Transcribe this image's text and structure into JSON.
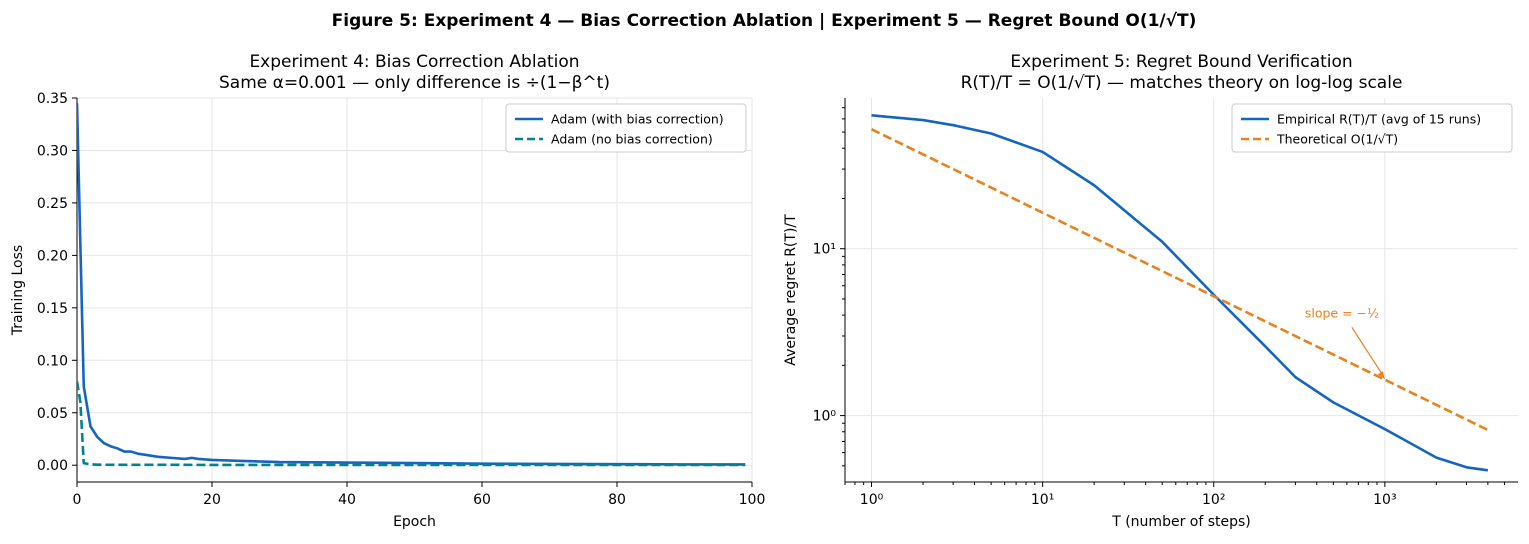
{
  "figure": {
    "suptitle": "Figure 5: Experiment 4 — Bias Correction Ablation  |  Experiment 5 — Regret Bound O(1/√T)"
  },
  "chart_data": [
    {
      "type": "line",
      "title": "Experiment 4: Bias Correction Ablation",
      "subtitle": "Same α=0.001 — only difference is ÷(1−β^t)",
      "xlabel": "Epoch",
      "ylabel": "Training Loss",
      "xlim": [
        0,
        100
      ],
      "ylim": [
        -0.016,
        0.35
      ],
      "xticks": [
        0,
        20,
        40,
        60,
        80,
        100
      ],
      "xtick_labels": [
        "0",
        "20",
        "40",
        "60",
        "80",
        "100"
      ],
      "yticks": [
        0.0,
        0.05,
        0.1,
        0.15,
        0.2,
        0.25,
        0.3,
        0.35
      ],
      "ytick_labels": [
        "0.00",
        "0.05",
        "0.10",
        "0.15",
        "0.20",
        "0.25",
        "0.30",
        "0.35"
      ],
      "grid": true,
      "legend_position": "top-right",
      "series": [
        {
          "name": "Adam (with bias correction)",
          "color": "#1565c0",
          "dash": "solid",
          "x": [
            0,
            1,
            2,
            3,
            4,
            5,
            6,
            7,
            8,
            9,
            10,
            12,
            14,
            16,
            17,
            18,
            20,
            25,
            30,
            40,
            50,
            60,
            70,
            80,
            90,
            99
          ],
          "y": [
            0.345,
            0.075,
            0.037,
            0.027,
            0.021,
            0.018,
            0.016,
            0.013,
            0.013,
            0.011,
            0.01,
            0.008,
            0.007,
            0.006,
            0.007,
            0.006,
            0.005,
            0.004,
            0.003,
            0.0025,
            0.002,
            0.0015,
            0.0012,
            0.001,
            0.0008,
            0.0007
          ]
        },
        {
          "name": "Adam (no bias correction)",
          "color": "#00838f",
          "dash": "dashed",
          "x": [
            0,
            0.5,
            1,
            2,
            3,
            5,
            10,
            20,
            40,
            60,
            80,
            99
          ],
          "y": [
            0.08,
            0.06,
            0.002,
            0.0008,
            0.0005,
            0.0004,
            0.0004,
            0.0003,
            0.0003,
            0.0003,
            0.0003,
            0.0003
          ]
        }
      ]
    },
    {
      "type": "line",
      "title": "Experiment 5: Regret Bound Verification",
      "subtitle": "R(T)/T = O(1/√T)  — matches theory on log-log scale",
      "xlabel": "T  (number of steps)",
      "ylabel": "Average regret  R(T)/T",
      "xscale": "log",
      "yscale": "log",
      "xlim": [
        0.7,
        6000
      ],
      "ylim": [
        0.4,
        80
      ],
      "xticks": [
        1,
        10,
        100,
        1000
      ],
      "xtick_labels": [
        "10⁰",
        "10¹",
        "10²",
        "10³"
      ],
      "yticks": [
        1,
        10
      ],
      "ytick_labels": [
        "10⁰",
        "10¹"
      ],
      "grid": true,
      "legend_position": "top-right",
      "annotation": {
        "text": "slope = −½",
        "x": 1000,
        "y": 1.65
      },
      "series": [
        {
          "name": "Empirical R(T)/T  (avg of 15 runs)",
          "color": "#1565c0",
          "dash": "solid",
          "x": [
            1,
            2,
            3,
            5,
            10,
            20,
            30,
            50,
            100,
            200,
            300,
            500,
            1000,
            2000,
            3000,
            4000
          ],
          "y": [
            63,
            59,
            55,
            49,
            38,
            24,
            17,
            11,
            5.3,
            2.6,
            1.7,
            1.2,
            0.83,
            0.56,
            0.49,
            0.47
          ]
        },
        {
          "name": "Theoretical O(1/√T)",
          "color": "#e8821f",
          "dash": "dashed",
          "x": [
            1,
            4000
          ],
          "y": [
            52,
            0.82
          ]
        }
      ]
    }
  ]
}
